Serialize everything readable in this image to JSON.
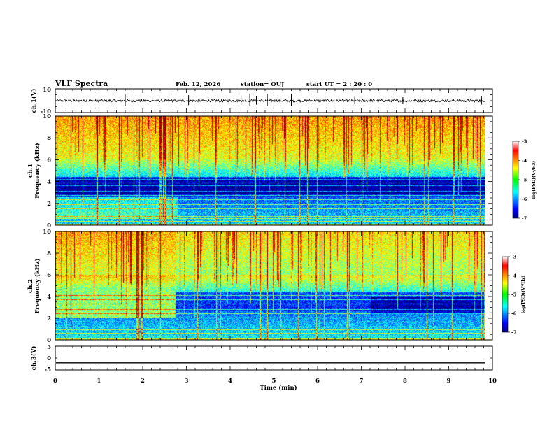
{
  "header": {
    "title": "VLF Spectra",
    "date": "Feb. 12, 2026",
    "station": "station= OUJ",
    "start_ut": "start  UT =   2 : 20 : 0"
  },
  "colors": {
    "background": "#ffffff",
    "axis": "#000000",
    "trace": "#000000"
  },
  "chart_data": [
    {
      "id": "ch1-waveform",
      "type": "line",
      "ylabel": "ch.1(V)",
      "ylim": [
        -10,
        10
      ],
      "yticks": [
        "10",
        "-10"
      ],
      "xlim": [
        0,
        10
      ],
      "series": [
        {
          "name": "ch.1",
          "baseline": 0,
          "noise_amplitude": 1.2,
          "spike_times_min": [
            1.6,
            3.05,
            4.25,
            4.45,
            4.6,
            4.85,
            5.4,
            6.85,
            7.95,
            9.75
          ]
        }
      ]
    },
    {
      "id": "ch1-spectrogram",
      "type": "heatmap",
      "ylabel": "ch.1\nFrequency (kHz)",
      "ylim": [
        0,
        10
      ],
      "yticks": [
        "0",
        "2",
        "4",
        "6",
        "8",
        "10"
      ],
      "xlim": [
        0,
        10
      ],
      "data_end_min": 9.83,
      "colorbar": {
        "label": "log(PSD)(V²/Hz)",
        "range": [
          -7,
          -3
        ],
        "ticks": [
          "-3",
          "-4",
          "-5",
          "-6",
          "-7"
        ]
      },
      "features": {
        "upper_band_log_psd": -4.6,
        "mid_band_log_psd": -5.6,
        "low_band_log_psd": -6.5,
        "quiet_band_khz": [
          2.8,
          4.3
        ],
        "horizontal_lines_khz": [
          0.3,
          0.55,
          0.8,
          1.1,
          1.5,
          1.9,
          2.3,
          2.7,
          3.1,
          3.6,
          3.9,
          4.2
        ]
      }
    },
    {
      "id": "ch2-spectrogram",
      "type": "heatmap",
      "ylabel": "ch.2\nFrequency (kHz)",
      "ylim": [
        0,
        10
      ],
      "yticks": [
        "0",
        "2",
        "4",
        "6",
        "8",
        "10"
      ],
      "xlim": [
        0,
        10
      ],
      "data_end_min": 9.83,
      "colorbar": {
        "label": "log(PSD)(V²/Hz)",
        "range": [
          -7,
          -3
        ],
        "ticks": [
          "-3",
          "-4",
          "-5",
          "-6",
          "-7"
        ]
      },
      "features": {
        "upper_band_log_psd": -4.9,
        "mid_band_log_psd": -5.4,
        "low_band_log_psd": -6.4,
        "early_enhanced_until_min": 2.75,
        "early_enhanced_band_khz": [
          2.0,
          4.8
        ],
        "horizontal_lines_khz": [
          0.35,
          0.6,
          0.9,
          1.2,
          1.6,
          2.0,
          2.4,
          2.8,
          3.3,
          3.7,
          4.1
        ]
      }
    },
    {
      "id": "ch3-waveform",
      "type": "line",
      "ylabel": "ch.3(V)",
      "ylim": [
        -5,
        5
      ],
      "yticks": [
        "5",
        "0",
        "-5"
      ],
      "xlim": [
        0,
        10
      ],
      "series": [
        {
          "name": "ch.3",
          "baseline": -2,
          "noise_amplitude": 0
        }
      ]
    }
  ],
  "x_axis": {
    "label": "Time (min)",
    "range": [
      0,
      10
    ],
    "ticks": [
      "0",
      "1",
      "2",
      "3",
      "4",
      "5",
      "6",
      "7",
      "8",
      "9",
      "10"
    ]
  }
}
